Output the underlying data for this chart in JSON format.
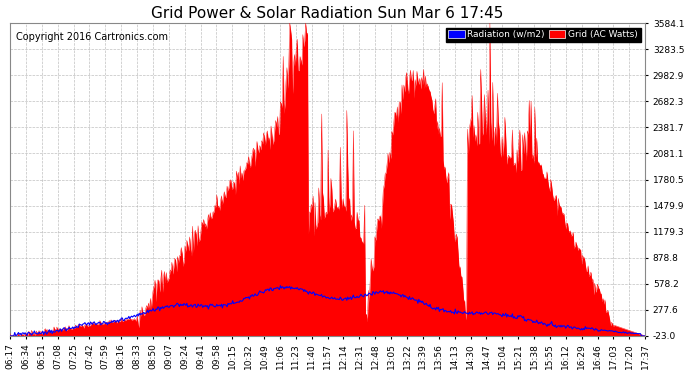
{
  "title": "Grid Power & Solar Radiation Sun Mar 6 17:45",
  "copyright": "Copyright 2016 Cartronics.com",
  "legend_radiation": "Radiation (w/m2)",
  "legend_grid": "Grid (AC Watts)",
  "yticks": [
    -23.0,
    277.6,
    578.2,
    878.8,
    1179.3,
    1479.9,
    1780.5,
    2081.1,
    2381.7,
    2682.3,
    2982.9,
    3283.5,
    3584.1
  ],
  "ylim": [
    -23.0,
    3584.1
  ],
  "background_color": "#ffffff",
  "grid_color": "#b0b0b0",
  "red_fill_color": "#ff0000",
  "blue_line_color": "#0000ff",
  "title_fontsize": 11,
  "copyright_fontsize": 7,
  "tick_fontsize": 6.5,
  "xtick_labels": [
    "06:17",
    "06:34",
    "06:51",
    "07:08",
    "07:25",
    "07:42",
    "07:59",
    "08:16",
    "08:33",
    "08:50",
    "09:07",
    "09:24",
    "09:41",
    "09:58",
    "10:15",
    "10:32",
    "10:49",
    "11:06",
    "11:23",
    "11:40",
    "11:57",
    "12:14",
    "12:31",
    "12:48",
    "13:05",
    "13:22",
    "13:39",
    "13:56",
    "14:13",
    "14:30",
    "14:47",
    "15:04",
    "15:21",
    "15:38",
    "15:55",
    "16:12",
    "16:29",
    "16:46",
    "17:03",
    "17:20",
    "17:37"
  ],
  "n_points": 680
}
